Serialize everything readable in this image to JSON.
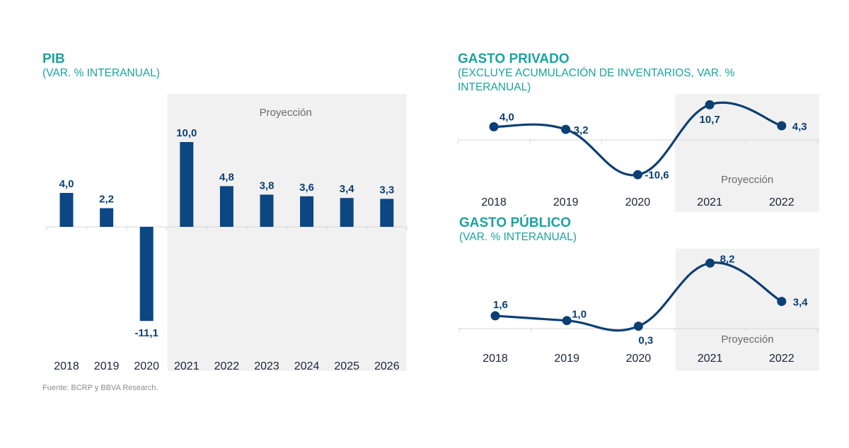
{
  "colors": {
    "bar": "#0c4683",
    "line": "#0c3f74",
    "title": "#1aa3a1",
    "projection_bg": "#f1f1f1",
    "axis": "#d6d6d6"
  },
  "source": "Fuente: BCRP y BBVA Research.",
  "chart_data": [
    {
      "id": "pib",
      "type": "bar",
      "title": "PIB",
      "subtitle": "(VAR. % INTERANUAL)",
      "categories": [
        "2018",
        "2019",
        "2020",
        "2021",
        "2022",
        "2023",
        "2024",
        "2025",
        "2026"
      ],
      "values": [
        4.0,
        2.2,
        -11.1,
        10.0,
        4.8,
        3.8,
        3.6,
        3.4,
        3.3
      ],
      "labels": [
        "4,0",
        "2,2",
        "-11,1",
        "10,0",
        "4,8",
        "3,8",
        "3,6",
        "3,4",
        "3,3"
      ],
      "projection_label": "Proyección",
      "projection_from": "2021",
      "ylim": [
        -11.1,
        10.0
      ],
      "grid": false
    },
    {
      "id": "gasto_privado",
      "type": "line",
      "title": "GASTO PRIVADO",
      "subtitle_lines": [
        "(EXCLUYE ACUMULACIÓN DE INVENTARIOS, VAR. %",
        "INTERANUAL)"
      ],
      "categories": [
        "2018",
        "2019",
        "2020",
        "2021",
        "2022"
      ],
      "values": [
        4.0,
        3.2,
        -10.6,
        10.7,
        4.3
      ],
      "labels": [
        "4,0",
        "3,2",
        "-10,6",
        "10,7",
        "4,3"
      ],
      "projection_label": "Proyección",
      "projection_from": "2021",
      "ylim": [
        -10.6,
        10.7
      ],
      "grid": false
    },
    {
      "id": "gasto_publico",
      "type": "line",
      "title": "GASTO PÚBLICO",
      "subtitle": "(VAR. % INTERANUAL)",
      "categories": [
        "2018",
        "2019",
        "2020",
        "2021",
        "2022"
      ],
      "values": [
        1.6,
        1.0,
        0.3,
        8.2,
        3.4
      ],
      "labels": [
        "1,6",
        "1,0",
        "0,3",
        "8,2",
        "3,4"
      ],
      "projection_label": "Proyección",
      "projection_from": "2021",
      "ylim": [
        0,
        8.2
      ],
      "grid": false
    }
  ]
}
